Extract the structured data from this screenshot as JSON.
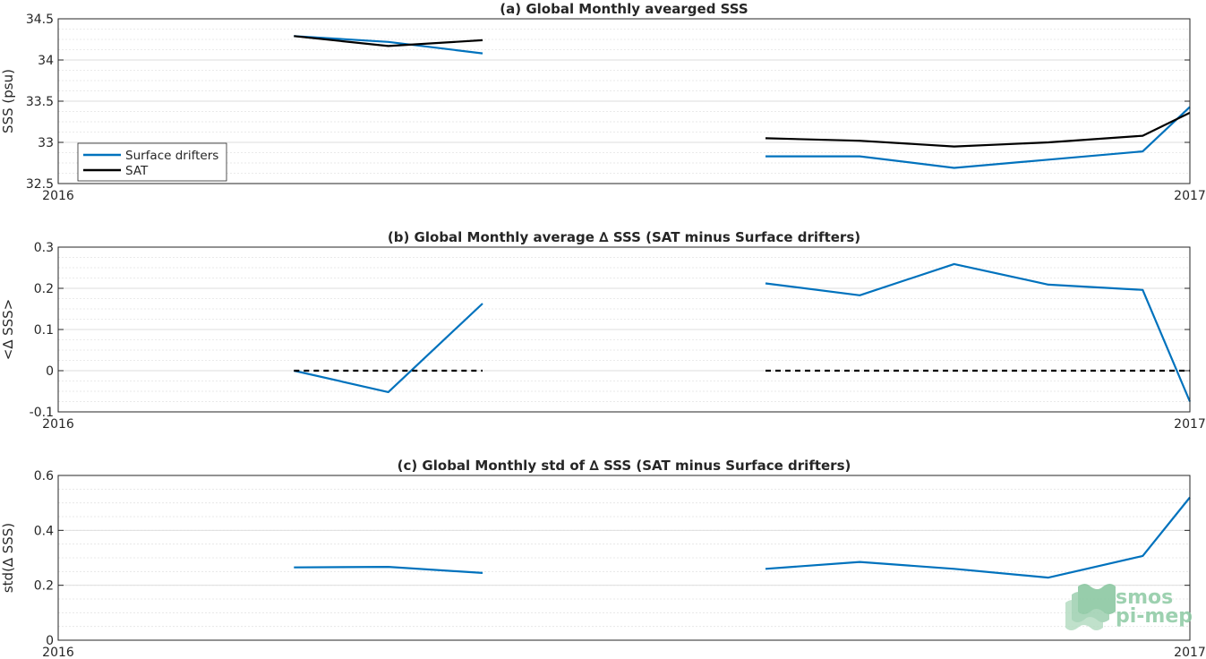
{
  "colors": {
    "surface_drifters": "#0072bd",
    "sat": "#000000",
    "axis": "#262626",
    "grid": "#dcdcdc",
    "logo": "#8cc9a3"
  },
  "logo": {
    "line1": "smos",
    "line2": "pi-mep"
  },
  "chart_data": [
    {
      "type": "line",
      "title": "(a) Global Monthly avearged SSS",
      "xlabel": "",
      "ylabel": "SSS (psu)",
      "xlim": [
        0,
        12
      ],
      "x_tick_labels": [
        "2016",
        "2017"
      ],
      "ylim": [
        32.5,
        34.5
      ],
      "y_ticks": [
        32.5,
        33,
        33.5,
        34,
        34.5
      ],
      "y_tick_labels": [
        "32.5",
        "33",
        "33.5",
        "34",
        "34.5"
      ],
      "grid": true,
      "legend": "bottom-left",
      "series": [
        {
          "name": "Surface drifters",
          "color": "#0072bd",
          "segments": [
            {
              "x": [
                2.5,
                3.5,
                4.5
              ],
              "y": [
                34.29,
                34.22,
                34.08
              ]
            },
            {
              "x": [
                7.5,
                8.5,
                9.5,
                10.5,
                11.5,
                12.0
              ],
              "y": [
                32.83,
                32.83,
                32.69,
                32.79,
                32.89,
                33.43
              ]
            }
          ]
        },
        {
          "name": "SAT",
          "color": "#000000",
          "segments": [
            {
              "x": [
                2.5,
                3.5,
                4.5
              ],
              "y": [
                34.29,
                34.17,
                34.24
              ]
            },
            {
              "x": [
                7.5,
                8.5,
                9.5,
                10.5,
                11.5,
                12.0
              ],
              "y": [
                33.05,
                33.02,
                32.95,
                33.0,
                33.08,
                33.36
              ]
            }
          ]
        }
      ]
    },
    {
      "type": "line",
      "title": "(b) Global Monthly average ∆ SSS (SAT minus Surface drifters)",
      "xlabel": "",
      "ylabel": "<∆ SSS>",
      "xlim": [
        0,
        12
      ],
      "x_tick_labels": [
        "2016",
        "2017"
      ],
      "ylim": [
        -0.1,
        0.3
      ],
      "y_ticks": [
        -0.1,
        0,
        0.1,
        0.2,
        0.3
      ],
      "y_tick_labels": [
        "-0.1",
        "0",
        "0.1",
        "0.2",
        "0.3"
      ],
      "grid": true,
      "series": [
        {
          "color": "#0072bd",
          "segments": [
            {
              "x": [
                2.5,
                3.5,
                4.5
              ],
              "y": [
                0.0,
                -0.052,
                0.163
              ]
            },
            {
              "x": [
                7.5,
                8.5,
                9.5,
                10.5,
                11.5,
                12.0
              ],
              "y": [
                0.212,
                0.183,
                0.259,
                0.209,
                0.196,
                -0.075
              ]
            }
          ]
        },
        {
          "color": "#000000",
          "dashed": true,
          "segments": [
            {
              "x": [
                2.5,
                4.5
              ],
              "y": [
                0,
                0
              ]
            },
            {
              "x": [
                7.5,
                12.0
              ],
              "y": [
                0,
                0
              ]
            }
          ]
        }
      ]
    },
    {
      "type": "line",
      "title": "(c) Global Monthly std of ∆ SSS (SAT minus Surface drifters)",
      "xlabel": "",
      "ylabel": "std(∆ SSS)",
      "xlim": [
        0,
        12
      ],
      "x_tick_labels": [
        "2016",
        "2017"
      ],
      "ylim": [
        0,
        0.6
      ],
      "y_ticks": [
        0,
        0.2,
        0.4,
        0.6
      ],
      "y_tick_labels": [
        "0",
        "0.2",
        "0.4",
        "0.6"
      ],
      "grid": true,
      "series": [
        {
          "color": "#0072bd",
          "segments": [
            {
              "x": [
                2.5,
                3.5,
                4.5
              ],
              "y": [
                0.265,
                0.267,
                0.245
              ]
            },
            {
              "x": [
                7.5,
                8.5,
                9.5,
                10.5,
                11.5,
                12.0
              ],
              "y": [
                0.26,
                0.285,
                0.26,
                0.228,
                0.307,
                0.52
              ]
            }
          ]
        }
      ]
    }
  ]
}
